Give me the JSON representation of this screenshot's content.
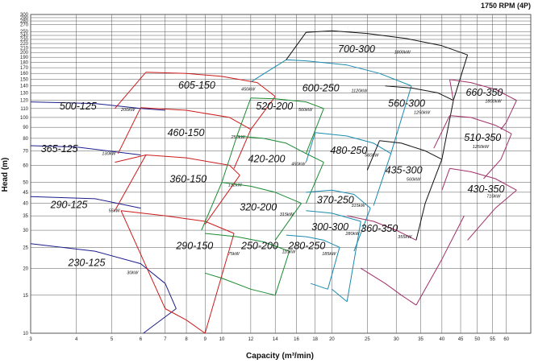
{
  "chart_data": {
    "type": "line",
    "title": "",
    "speed_label": "1750 RPM (4P)",
    "xlabel": "Capacity (m³/min)",
    "ylabel": "Head (m)",
    "xscale": "log",
    "yscale": "log",
    "xlim": [
      3,
      70
    ],
    "ylim": [
      10,
      300
    ],
    "grid": true,
    "x_tick_labels": [
      "3",
      "4",
      "5",
      "6",
      "7",
      "8",
      "9",
      "10",
      "12",
      "14",
      "16",
      "18",
      "20",
      "25",
      "30",
      "35",
      "40",
      "45",
      "50",
      "55",
      "60"
    ],
    "y_tick_labels": [
      "10",
      "15",
      "20",
      "25",
      "30",
      "35",
      "40",
      "45",
      "50",
      "60",
      "70",
      "80",
      "90",
      "100",
      "110",
      "120",
      "130",
      "140",
      "150",
      "160",
      "170",
      "180",
      "190",
      "200",
      "210",
      "220",
      "230",
      "240",
      "250",
      "270",
      "280",
      "290",
      "300"
    ],
    "y_tick_values": [
      10,
      15,
      20,
      25,
      30,
      35,
      40,
      45,
      50,
      60,
      70,
      80,
      90,
      100,
      110,
      120,
      130,
      140,
      150,
      160,
      170,
      180,
      190,
      200,
      210,
      220,
      230,
      240,
      250,
      270,
      280,
      290,
      300
    ],
    "series": [
      {
        "name": "230-125",
        "power": "30kW",
        "color": "#1c1c8c",
        "label_at": [
          3.8,
          20.5
        ],
        "kw_at": [
          5.5,
          18.8
        ],
        "top": [
          [
            3,
            26
          ],
          [
            4.5,
            24
          ],
          [
            6,
            21
          ],
          [
            7,
            17
          ],
          [
            7.5,
            13
          ]
        ],
        "right": [
          [
            7.5,
            13
          ],
          [
            6.1,
            10
          ]
        ],
        "closed": false
      },
      {
        "name": "290-125",
        "power": "55kW",
        "color": "#1c1c8c",
        "label_at": [
          3.4,
          38
        ],
        "kw_at": [
          4.9,
          36.5
        ],
        "top": [
          [
            3,
            43
          ],
          [
            4.5,
            42
          ],
          [
            6,
            38
          ]
        ],
        "closed": false
      },
      {
        "name": "365-125",
        "power": "130kW",
        "color": "#1c1c8c",
        "label_at": [
          3.2,
          69
        ],
        "kw_at": [
          4.7,
          67
        ],
        "top": [
          [
            3,
            74
          ],
          [
            4,
            73
          ],
          [
            6,
            67
          ]
        ],
        "closed": false
      },
      {
        "name": "500-125",
        "power": "200kW",
        "color": "#1c1c8c",
        "label_at": [
          3.6,
          109
        ],
        "kw_at": [
          5.3,
          107
        ],
        "top": [
          [
            3,
            118
          ],
          [
            4.5,
            116
          ],
          [
            6,
            110
          ],
          [
            7,
            108
          ]
        ],
        "closed": false
      },
      {
        "name": "290-150",
        "power": "75kW",
        "color": "#cc1a1a",
        "label_at": [
          7.5,
          24.5
        ],
        "kw_at": [
          10.4,
          23
        ],
        "top": [
          [
            5.3,
            37
          ],
          [
            7,
            35
          ],
          [
            9,
            33
          ],
          [
            10.8,
            29
          ]
        ],
        "right": [
          [
            10.8,
            29
          ],
          [
            9,
            10
          ]
        ],
        "bottom": [
          [
            9,
            10
          ],
          [
            8,
            11.5
          ],
          [
            7,
            13
          ]
        ],
        "left": [
          [
            7,
            13
          ],
          [
            5.3,
            37
          ]
        ],
        "closed": true
      },
      {
        "name": "360-150",
        "power": "132kW",
        "color": "#cc1a1a",
        "label_at": [
          7.2,
          50
        ],
        "kw_at": [
          10.4,
          48
        ],
        "top": [
          [
            5.1,
            62
          ],
          [
            6.2,
            67
          ],
          [
            8,
            65
          ],
          [
            10.5,
            60
          ],
          [
            11.2,
            54
          ]
        ],
        "right": [
          [
            11.2,
            54
          ],
          [
            9,
            32
          ]
        ],
        "left": [
          [
            5.1,
            37
          ],
          [
            6.2,
            67
          ]
        ],
        "closed": false
      },
      {
        "name": "460-150",
        "power": "250kW",
        "color": "#cc1a1a",
        "label_at": [
          7.1,
          82
        ],
        "kw_at": [
          10.6,
          80
        ],
        "top": [
          [
            6,
            111
          ],
          [
            8,
            108
          ],
          [
            10.5,
            100
          ],
          [
            12,
            88
          ]
        ],
        "right": [
          [
            12,
            88
          ],
          [
            10.8,
            58
          ]
        ],
        "left": [
          [
            5.2,
            68
          ],
          [
            6,
            111
          ]
        ],
        "closed": false
      },
      {
        "name": "605-150",
        "power": "450kW",
        "color": "#cc1a1a",
        "label_at": [
          7.6,
          136
        ],
        "kw_at": [
          11.3,
          133
        ],
        "top": [
          [
            6.2,
            162
          ],
          [
            8,
            160
          ],
          [
            10,
            155
          ],
          [
            12.5,
            145
          ],
          [
            14,
            125
          ]
        ],
        "right": [
          [
            14,
            125
          ],
          [
            12,
            88
          ]
        ],
        "left": [
          [
            5.1,
            110
          ],
          [
            6.2,
            162
          ]
        ],
        "closed": false
      },
      {
        "name": "250-200",
        "power": "110kW",
        "color": "#1a8a30",
        "label_at": [
          11.3,
          24.5
        ],
        "kw_at": [
          14.6,
          23.5
        ],
        "top": [
          [
            9,
            29
          ],
          [
            11,
            28
          ],
          [
            13,
            26.5
          ],
          [
            15.3,
            24
          ]
        ],
        "right": [
          [
            15.3,
            24
          ],
          [
            14,
            15
          ]
        ],
        "bottom": [
          [
            14,
            15
          ],
          [
            12,
            16
          ],
          [
            10,
            18
          ],
          [
            9,
            19
          ]
        ],
        "closed": true
      },
      {
        "name": "320-200",
        "power": "315kW",
        "color": "#1a8a30",
        "label_at": [
          11.2,
          37
        ],
        "kw_at": [
          14.4,
          35
        ],
        "top": [
          [
            10,
            50
          ],
          [
            12,
            48
          ],
          [
            14,
            45
          ],
          [
            16.5,
            40
          ]
        ],
        "right": [
          [
            16.5,
            40
          ],
          [
            14,
            27
          ]
        ],
        "left": [
          [
            8.8,
            30
          ],
          [
            10,
            50
          ]
        ],
        "closed": false
      },
      {
        "name": "420-200",
        "power": "450kW",
        "color": "#1a8a30",
        "label_at": [
          11.8,
          62
        ],
        "kw_at": [
          15.5,
          60
        ],
        "top": [
          [
            11,
            82
          ],
          [
            13,
            80
          ],
          [
            15,
            76
          ],
          [
            17,
            68
          ],
          [
            19,
            62
          ]
        ],
        "right": [
          [
            19,
            62
          ],
          [
            17,
            40
          ]
        ],
        "left": [
          [
            10,
            50
          ],
          [
            11,
            82
          ]
        ],
        "closed": false
      },
      {
        "name": "520-200",
        "power": "560kW",
        "color": "#1a8a30",
        "label_at": [
          12.4,
          109
        ],
        "kw_at": [
          16.2,
          107
        ],
        "top": [
          [
            12,
            123
          ],
          [
            14,
            122
          ],
          [
            17,
            118
          ],
          [
            19,
            110
          ]
        ],
        "right": [
          [
            19,
            110
          ],
          [
            17,
            68
          ]
        ],
        "left": [
          [
            11,
            82
          ],
          [
            12,
            123
          ]
        ],
        "closed": false
      },
      {
        "name": "280-250",
        "power": "185kW",
        "color": "#1a8aaf",
        "label_at": [
          15.2,
          24.5
        ],
        "kw_at": [
          18.8,
          23
        ],
        "top": [
          [
            15,
            28.5
          ],
          [
            17,
            28
          ],
          [
            19,
            27
          ],
          [
            21,
            25
          ]
        ],
        "right": [
          [
            21,
            25
          ],
          [
            19.5,
            16
          ]
        ],
        "bottom": [
          [
            19.5,
            16
          ],
          [
            17.5,
            17
          ]
        ],
        "closed": true
      },
      {
        "name": "300-300",
        "power": "280kW",
        "color": "#1a8aaf",
        "label_at": [
          17.6,
          30
        ],
        "kw_at": [
          21.8,
          28.5
        ],
        "top": [
          [
            17,
            37
          ],
          [
            20,
            36
          ],
          [
            24,
            33
          ]
        ],
        "right": [
          [
            24,
            33
          ],
          [
            22,
            14
          ]
        ],
        "bottom": [
          [
            22,
            14
          ],
          [
            20,
            16
          ]
        ],
        "closed": false
      },
      {
        "name": "370-250",
        "power": "315kW",
        "color": "#1a8aaf",
        "label_at": [
          18.2,
          40
        ],
        "kw_at": [
          22.6,
          38.5
        ],
        "top": [
          [
            17,
            45
          ],
          [
            20,
            46
          ],
          [
            23,
            44
          ],
          [
            25.5,
            38
          ]
        ],
        "right": [
          [
            25.5,
            38
          ],
          [
            23,
            24
          ]
        ],
        "closed": false
      },
      {
        "name": "480-250",
        "power": "560kW",
        "color": "#1a8aaf",
        "label_at": [
          19.8,
          68
        ],
        "kw_at": [
          24.6,
          66
        ],
        "top": [
          [
            18,
            85
          ],
          [
            22,
            82
          ],
          [
            26,
            76
          ],
          [
            29,
            68
          ]
        ],
        "right": [
          [
            29,
            68
          ],
          [
            26,
            39
          ]
        ],
        "left": [
          [
            17,
            62
          ],
          [
            18,
            85
          ]
        ],
        "closed": false
      },
      {
        "name": "600-250",
        "power": "1120kW",
        "color": "#1a8aaf",
        "label_at": [
          16.6,
          132
        ],
        "kw_at": [
          22.6,
          131
        ],
        "top": [
          [
            15,
            185
          ],
          [
            17,
            183
          ],
          [
            22,
            175
          ],
          [
            27,
            160
          ],
          [
            33,
            140
          ]
        ],
        "right": [
          [
            33,
            140
          ],
          [
            29,
            68
          ]
        ],
        "left": [
          [
            12,
            146
          ],
          [
            15,
            185
          ]
        ],
        "closed": false
      },
      {
        "name": "435-300",
        "power": "560kW",
        "color": "#111111",
        "label_at": [
          28,
          55
        ],
        "kw_at": [
          32,
          51
        ],
        "top": [
          [
            27,
            78
          ],
          [
            31,
            76
          ],
          [
            36,
            70
          ],
          [
            40,
            64
          ]
        ],
        "right": [
          [
            40,
            64
          ],
          [
            36,
            40
          ],
          [
            34,
            27
          ]
        ],
        "left": [
          [
            25,
            57
          ],
          [
            27,
            78
          ]
        ],
        "closed": false
      },
      {
        "name": "560-300",
        "power": "1250kW",
        "color": "#111111",
        "label_at": [
          28.5,
          112
        ],
        "kw_at": [
          33.5,
          104
        ],
        "top": [
          [
            28,
            140
          ],
          [
            33,
            137
          ],
          [
            39,
            130
          ],
          [
            43,
            120
          ]
        ],
        "right": [
          [
            43,
            120
          ],
          [
            40,
            64
          ]
        ],
        "closed": false
      },
      {
        "name": "700-300",
        "power": "1800kW",
        "color": "#111111",
        "label_at": [
          20.8,
          200
        ],
        "kw_at": [
          29.6,
          198
        ],
        "top": [
          [
            17,
            248
          ],
          [
            20,
            252
          ],
          [
            25,
            245
          ],
          [
            32,
            232
          ],
          [
            40,
            215
          ],
          [
            47,
            195
          ]
        ],
        "right": [
          [
            47,
            195
          ],
          [
            43,
            120
          ]
        ],
        "left": [
          [
            15,
            185
          ],
          [
            17,
            248
          ]
        ],
        "closed": false
      },
      {
        "name": "360-350",
        "power": "355kW",
        "color": "#a0306a",
        "label_at": [
          24,
          29.5
        ],
        "kw_at": [
          30.3,
          27.5
        ],
        "top": [
          [
            22,
            35
          ],
          [
            26,
            33
          ],
          [
            30,
            30
          ],
          [
            34,
            27
          ]
        ],
        "bottom": [
          [
            24,
            20
          ],
          [
            28,
            17
          ],
          [
            31,
            15
          ],
          [
            34,
            13.5
          ]
        ],
        "right": [
          [
            34,
            13.5
          ],
          [
            40,
            22
          ],
          [
            46,
            35
          ]
        ],
        "closed": false
      },
      {
        "name": "430-350",
        "power": "710kW",
        "color": "#a0306a",
        "label_at": [
          47,
          45
        ],
        "kw_at": [
          53,
          42.5
        ],
        "top": [
          [
            42,
            58
          ],
          [
            48,
            56
          ],
          [
            56,
            52
          ],
          [
            64,
            46
          ]
        ],
        "right": [
          [
            64,
            46
          ],
          [
            56,
            38
          ],
          [
            47,
            27
          ]
        ],
        "left": [
          [
            40,
            46
          ],
          [
            42,
            58
          ]
        ],
        "closed": false
      },
      {
        "name": "510-350",
        "power": "1250kW",
        "color": "#a0306a",
        "label_at": [
          46,
          78
        ],
        "kw_at": [
          48.5,
          72
        ],
        "top": [
          [
            42,
            102
          ],
          [
            48,
            100
          ],
          [
            56,
            92
          ],
          [
            62,
            84
          ]
        ],
        "right": [
          [
            62,
            84
          ],
          [
            58,
            64
          ],
          [
            52,
            52
          ]
        ],
        "left": [
          [
            38,
            72
          ],
          [
            42,
            102
          ]
        ],
        "closed": false
      },
      {
        "name": "660-350",
        "power": "1800kW",
        "color": "#a0306a",
        "label_at": [
          46.5,
          126
        ],
        "kw_at": [
          52.5,
          117
        ],
        "top": [
          [
            42,
            150
          ],
          [
            48,
            145
          ],
          [
            56,
            135
          ],
          [
            64,
            120
          ]
        ],
        "right": [
          [
            64,
            120
          ],
          [
            60,
            95
          ],
          [
            58,
            88
          ]
        ],
        "left": [
          [
            43,
            120
          ],
          [
            42,
            150
          ]
        ],
        "closed": false
      }
    ]
  }
}
